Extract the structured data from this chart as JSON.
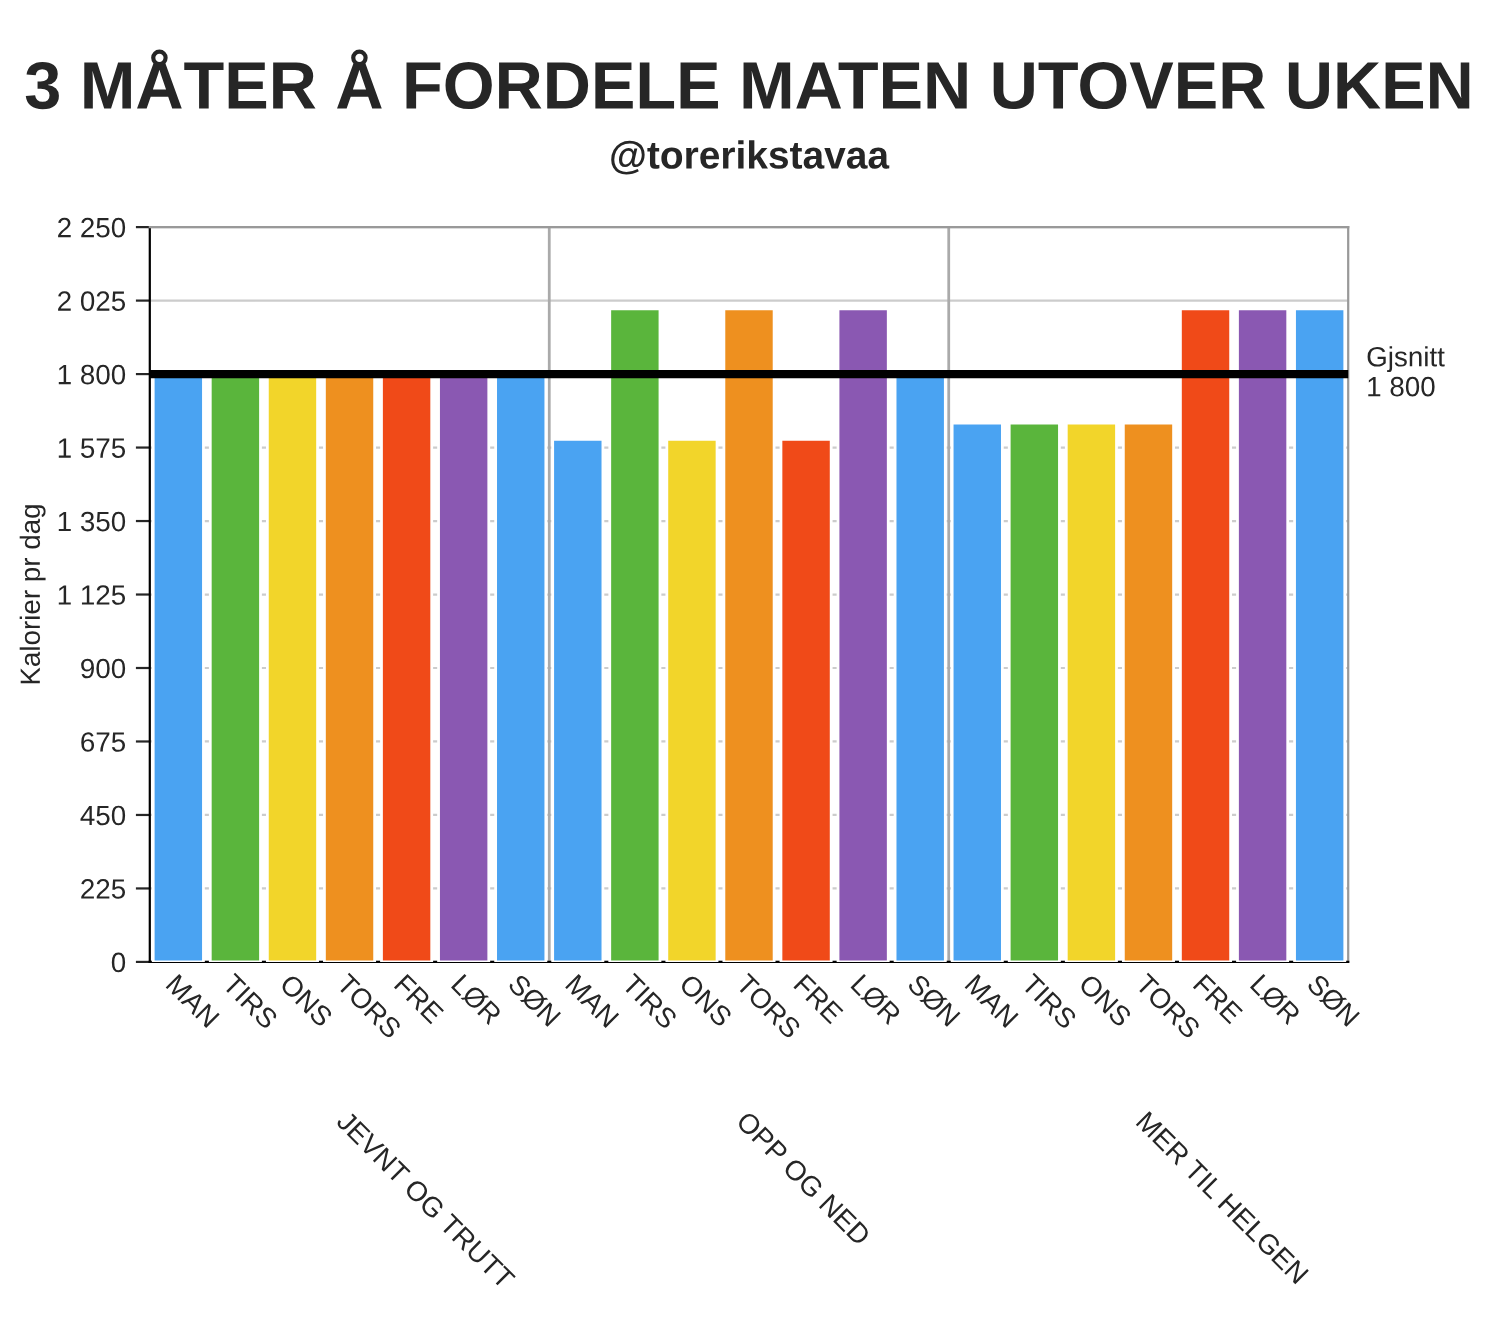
{
  "chart_data": {
    "type": "bar",
    "title": "3 MÅTER Å FORDELE MATEN UTOVER UKEN",
    "subtitle": "@torerikstavaa",
    "ylabel": "Kalorier pr dag",
    "categories": [
      "MAN",
      "TIRS",
      "ONS",
      "TORS",
      "FRE",
      "LØR",
      "SØN",
      "MAN",
      "TIRS",
      "ONS",
      "TORS",
      "FRE",
      "LØR",
      "SØN",
      "MAN",
      "TIRS",
      "ONS",
      "TORS",
      "FRE",
      "LØR",
      "SØN"
    ],
    "values": [
      1800,
      1800,
      1800,
      1800,
      1800,
      1800,
      1800,
      1600,
      2000,
      1600,
      2000,
      1600,
      2000,
      1800,
      1650,
      1650,
      1650,
      1650,
      2000,
      2000,
      2000
    ],
    "colors": [
      "#4aa3f2",
      "#5ab53c",
      "#f2d52a",
      "#ee901f",
      "#f04a18",
      "#8a58b2",
      "#4aa3f2",
      "#4aa3f2",
      "#5ab53c",
      "#f2d52a",
      "#ee901f",
      "#f04a18",
      "#8a58b2",
      "#4aa3f2",
      "#4aa3f2",
      "#5ab53c",
      "#f2d52a",
      "#ee901f",
      "#f04a18",
      "#8a58b2",
      "#4aa3f2"
    ],
    "ylim": [
      0,
      2250
    ],
    "yticks": [
      0,
      {
        "value": 225,
        "label": "225"
      },
      {
        "value": 450,
        "label": "450"
      },
      {
        "value": 675,
        "label": "675"
      },
      {
        "value": 900,
        "label": "900"
      },
      {
        "value": 1125,
        "label": "1 125"
      },
      {
        "value": 1350,
        "label": "1 350"
      },
      {
        "value": 1575,
        "label": "1 575"
      },
      {
        "value": 1800,
        "label": "1 800"
      },
      {
        "value": 2025,
        "label": "2 025"
      },
      {
        "value": 2250,
        "label": "2 250"
      }
    ],
    "grid": "y",
    "ref_lines": [
      {
        "axis": "y",
        "value": 1800,
        "label": "Gjsnitt\n1 800",
        "color": "#000000",
        "line_style": "solid"
      }
    ],
    "annotations": [
      "JEVNT OG TRUTT",
      "OPP OG NED",
      "MER TIL HELGEN"
    ]
  }
}
